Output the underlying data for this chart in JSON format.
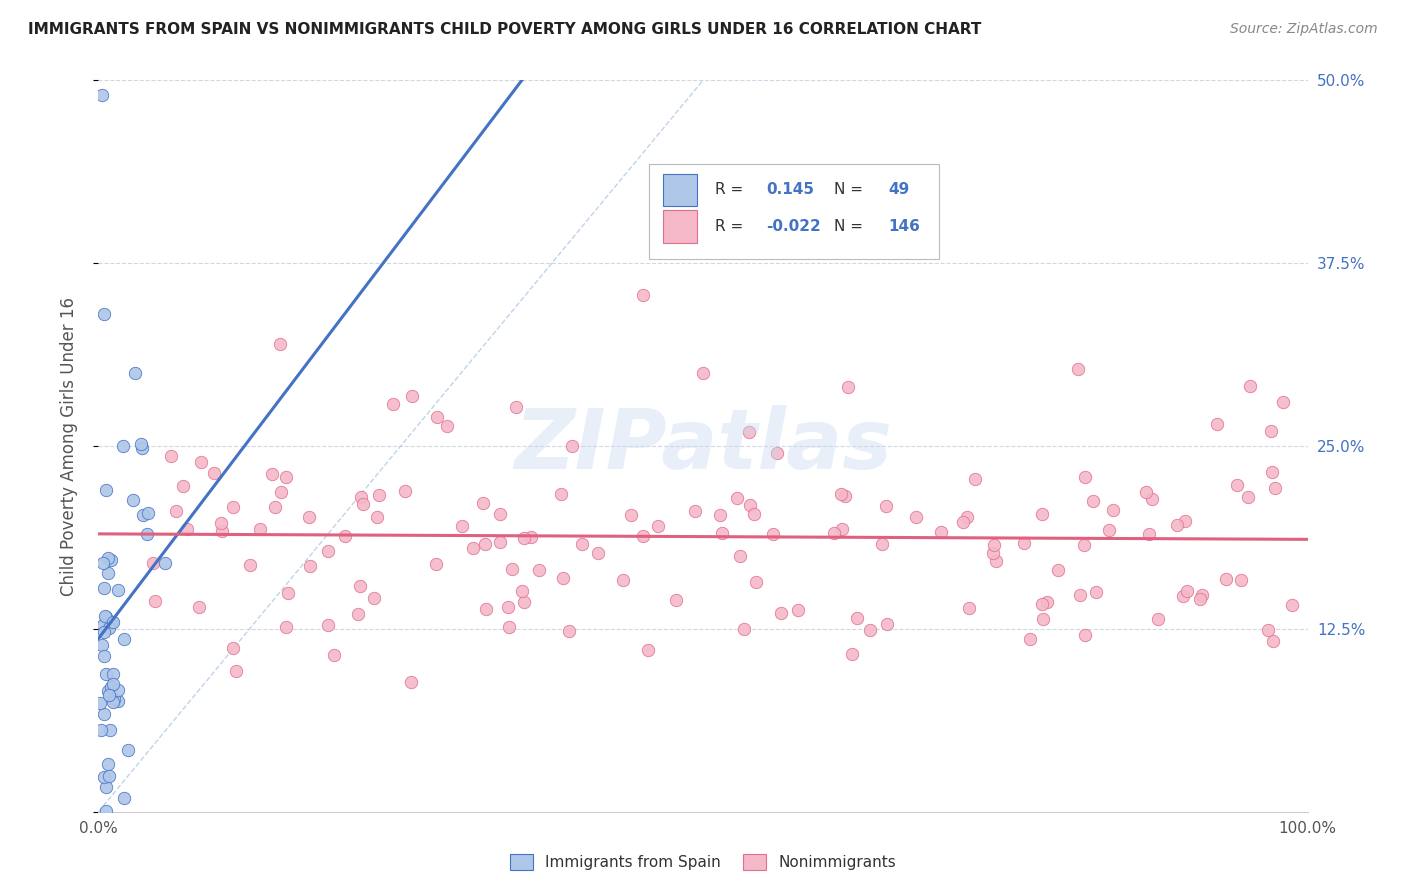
{
  "title": "IMMIGRANTS FROM SPAIN VS NONIMMIGRANTS CHILD POVERTY AMONG GIRLS UNDER 16 CORRELATION CHART",
  "source": "Source: ZipAtlas.com",
  "ylabel": "Child Poverty Among Girls Under 16",
  "xlim": [
    0,
    1.0
  ],
  "ylim": [
    0,
    0.5
  ],
  "xticks": [
    0.0,
    0.25,
    0.5,
    0.75,
    1.0
  ],
  "xticklabels": [
    "0.0%",
    "",
    "",
    "",
    "100.0%"
  ],
  "ytick_positions": [
    0.0,
    0.125,
    0.25,
    0.375,
    0.5
  ],
  "yticklabels_right": [
    "",
    "12.5%",
    "25.0%",
    "37.5%",
    "50.0%"
  ],
  "r_blue": 0.145,
  "n_blue": 49,
  "r_pink": -0.022,
  "n_pink": 146,
  "color_blue_fill": "#aec6e8",
  "color_blue_edge": "#4472c4",
  "color_pink_fill": "#f4b8c8",
  "color_pink_edge": "#e07090",
  "color_diag": "#b0c8e8",
  "background_color": "#ffffff",
  "grid_color": "#d0d8e8",
  "watermark_color": "#c8d8f0",
  "blue_trend_color": "#4472c4",
  "pink_trend_color": "#e06080"
}
